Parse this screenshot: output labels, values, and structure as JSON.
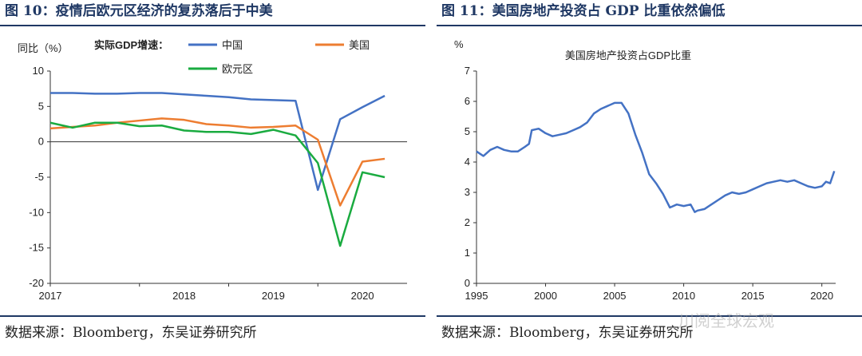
{
  "left": {
    "figure_title": "图 10：疫情后欧元区经济的复苏落后于中美",
    "source": "数据来源：Bloomberg，东吴证券研究所"
  },
  "right": {
    "figure_title": "图 11：美国房地产投资占 GDP 比重依然偏低",
    "source": "数据来源：Bloomberg，东吴证券研究所"
  },
  "watermark": "川阅全球宏观",
  "chart_data": [
    {
      "type": "line",
      "title": "实际GDP增速：",
      "ylabel": "同比（%）",
      "xlabel": "",
      "ylim": [
        -20,
        10
      ],
      "yticks": [
        10,
        5,
        0,
        -5,
        -10,
        -15,
        -20
      ],
      "xlim": [
        2017,
        2021
      ],
      "xticks": [
        2017,
        2018,
        2019,
        2020
      ],
      "legend_position": "top",
      "series": [
        {
          "name": "中国",
          "color": "#4472c4",
          "x": [
            2017.0,
            2017.25,
            2017.5,
            2017.75,
            2018.0,
            2018.25,
            2018.5,
            2018.75,
            2019.0,
            2019.25,
            2019.5,
            2019.75,
            2020.0,
            2020.25,
            2020.5,
            2020.75
          ],
          "y": [
            6.9,
            6.9,
            6.8,
            6.8,
            6.9,
            6.9,
            6.7,
            6.5,
            6.3,
            6.0,
            5.9,
            5.8,
            -6.8,
            3.2,
            4.9,
            6.5
          ]
        },
        {
          "name": "美国",
          "color": "#ed7d31",
          "x": [
            2017.0,
            2017.25,
            2017.5,
            2017.75,
            2018.0,
            2018.25,
            2018.5,
            2018.75,
            2019.0,
            2019.25,
            2019.5,
            2019.75,
            2020.0,
            2020.25,
            2020.5,
            2020.75
          ],
          "y": [
            1.9,
            2.1,
            2.3,
            2.7,
            3.0,
            3.3,
            3.1,
            2.5,
            2.3,
            2.0,
            2.1,
            2.3,
            0.3,
            -9.0,
            -2.8,
            -2.4
          ]
        },
        {
          "name": "欧元区",
          "color": "#1aab40",
          "x": [
            2017.0,
            2017.25,
            2017.5,
            2017.75,
            2018.0,
            2018.25,
            2018.5,
            2018.75,
            2019.0,
            2019.25,
            2019.5,
            2019.75,
            2020.0,
            2020.25,
            2020.5,
            2020.75
          ],
          "y": [
            2.7,
            2.0,
            2.7,
            2.7,
            2.2,
            2.3,
            1.6,
            1.4,
            1.4,
            1.1,
            1.7,
            0.9,
            -3.0,
            -14.7,
            -4.3,
            -5.0
          ]
        }
      ]
    },
    {
      "type": "line",
      "title": "美国房地产投资占GDP比重",
      "ylabel": "%",
      "xlabel": "",
      "ylim": [
        0,
        7
      ],
      "yticks": [
        7,
        6,
        5,
        4,
        3,
        2,
        1,
        0
      ],
      "xlim": [
        1995,
        2021
      ],
      "xticks": [
        1995,
        2000,
        2005,
        2010,
        2015,
        2020
      ],
      "series": [
        {
          "name": "美国房地产投资占GDP比重",
          "color": "#4472c4",
          "x": [
            1995.0,
            1995.5,
            1996.0,
            1996.5,
            1997.0,
            1997.5,
            1998.0,
            1998.5,
            1998.8,
            1999.0,
            1999.5,
            2000.0,
            2000.5,
            2001.0,
            2001.5,
            2002.0,
            2002.5,
            2003.0,
            2003.5,
            2004.0,
            2004.5,
            2005.0,
            2005.5,
            2006.0,
            2006.5,
            2007.0,
            2007.5,
            2008.0,
            2008.5,
            2009.0,
            2009.5,
            2010.0,
            2010.5,
            2010.8,
            2011.0,
            2011.5,
            2012.0,
            2012.5,
            2013.0,
            2013.5,
            2014.0,
            2014.5,
            2015.0,
            2015.5,
            2016.0,
            2016.5,
            2017.0,
            2017.5,
            2018.0,
            2018.5,
            2019.0,
            2019.5,
            2020.0,
            2020.3,
            2020.6,
            2020.9
          ],
          "y": [
            4.35,
            4.2,
            4.4,
            4.5,
            4.4,
            4.35,
            4.35,
            4.5,
            4.6,
            5.05,
            5.1,
            4.95,
            4.85,
            4.9,
            4.95,
            5.05,
            5.15,
            5.3,
            5.6,
            5.75,
            5.85,
            5.95,
            5.95,
            5.6,
            4.9,
            4.3,
            3.6,
            3.3,
            2.95,
            2.5,
            2.6,
            2.55,
            2.6,
            2.35,
            2.4,
            2.45,
            2.6,
            2.75,
            2.9,
            3.0,
            2.95,
            3.0,
            3.1,
            3.2,
            3.3,
            3.35,
            3.4,
            3.35,
            3.4,
            3.3,
            3.2,
            3.15,
            3.2,
            3.35,
            3.3,
            3.7
          ]
        }
      ]
    }
  ]
}
